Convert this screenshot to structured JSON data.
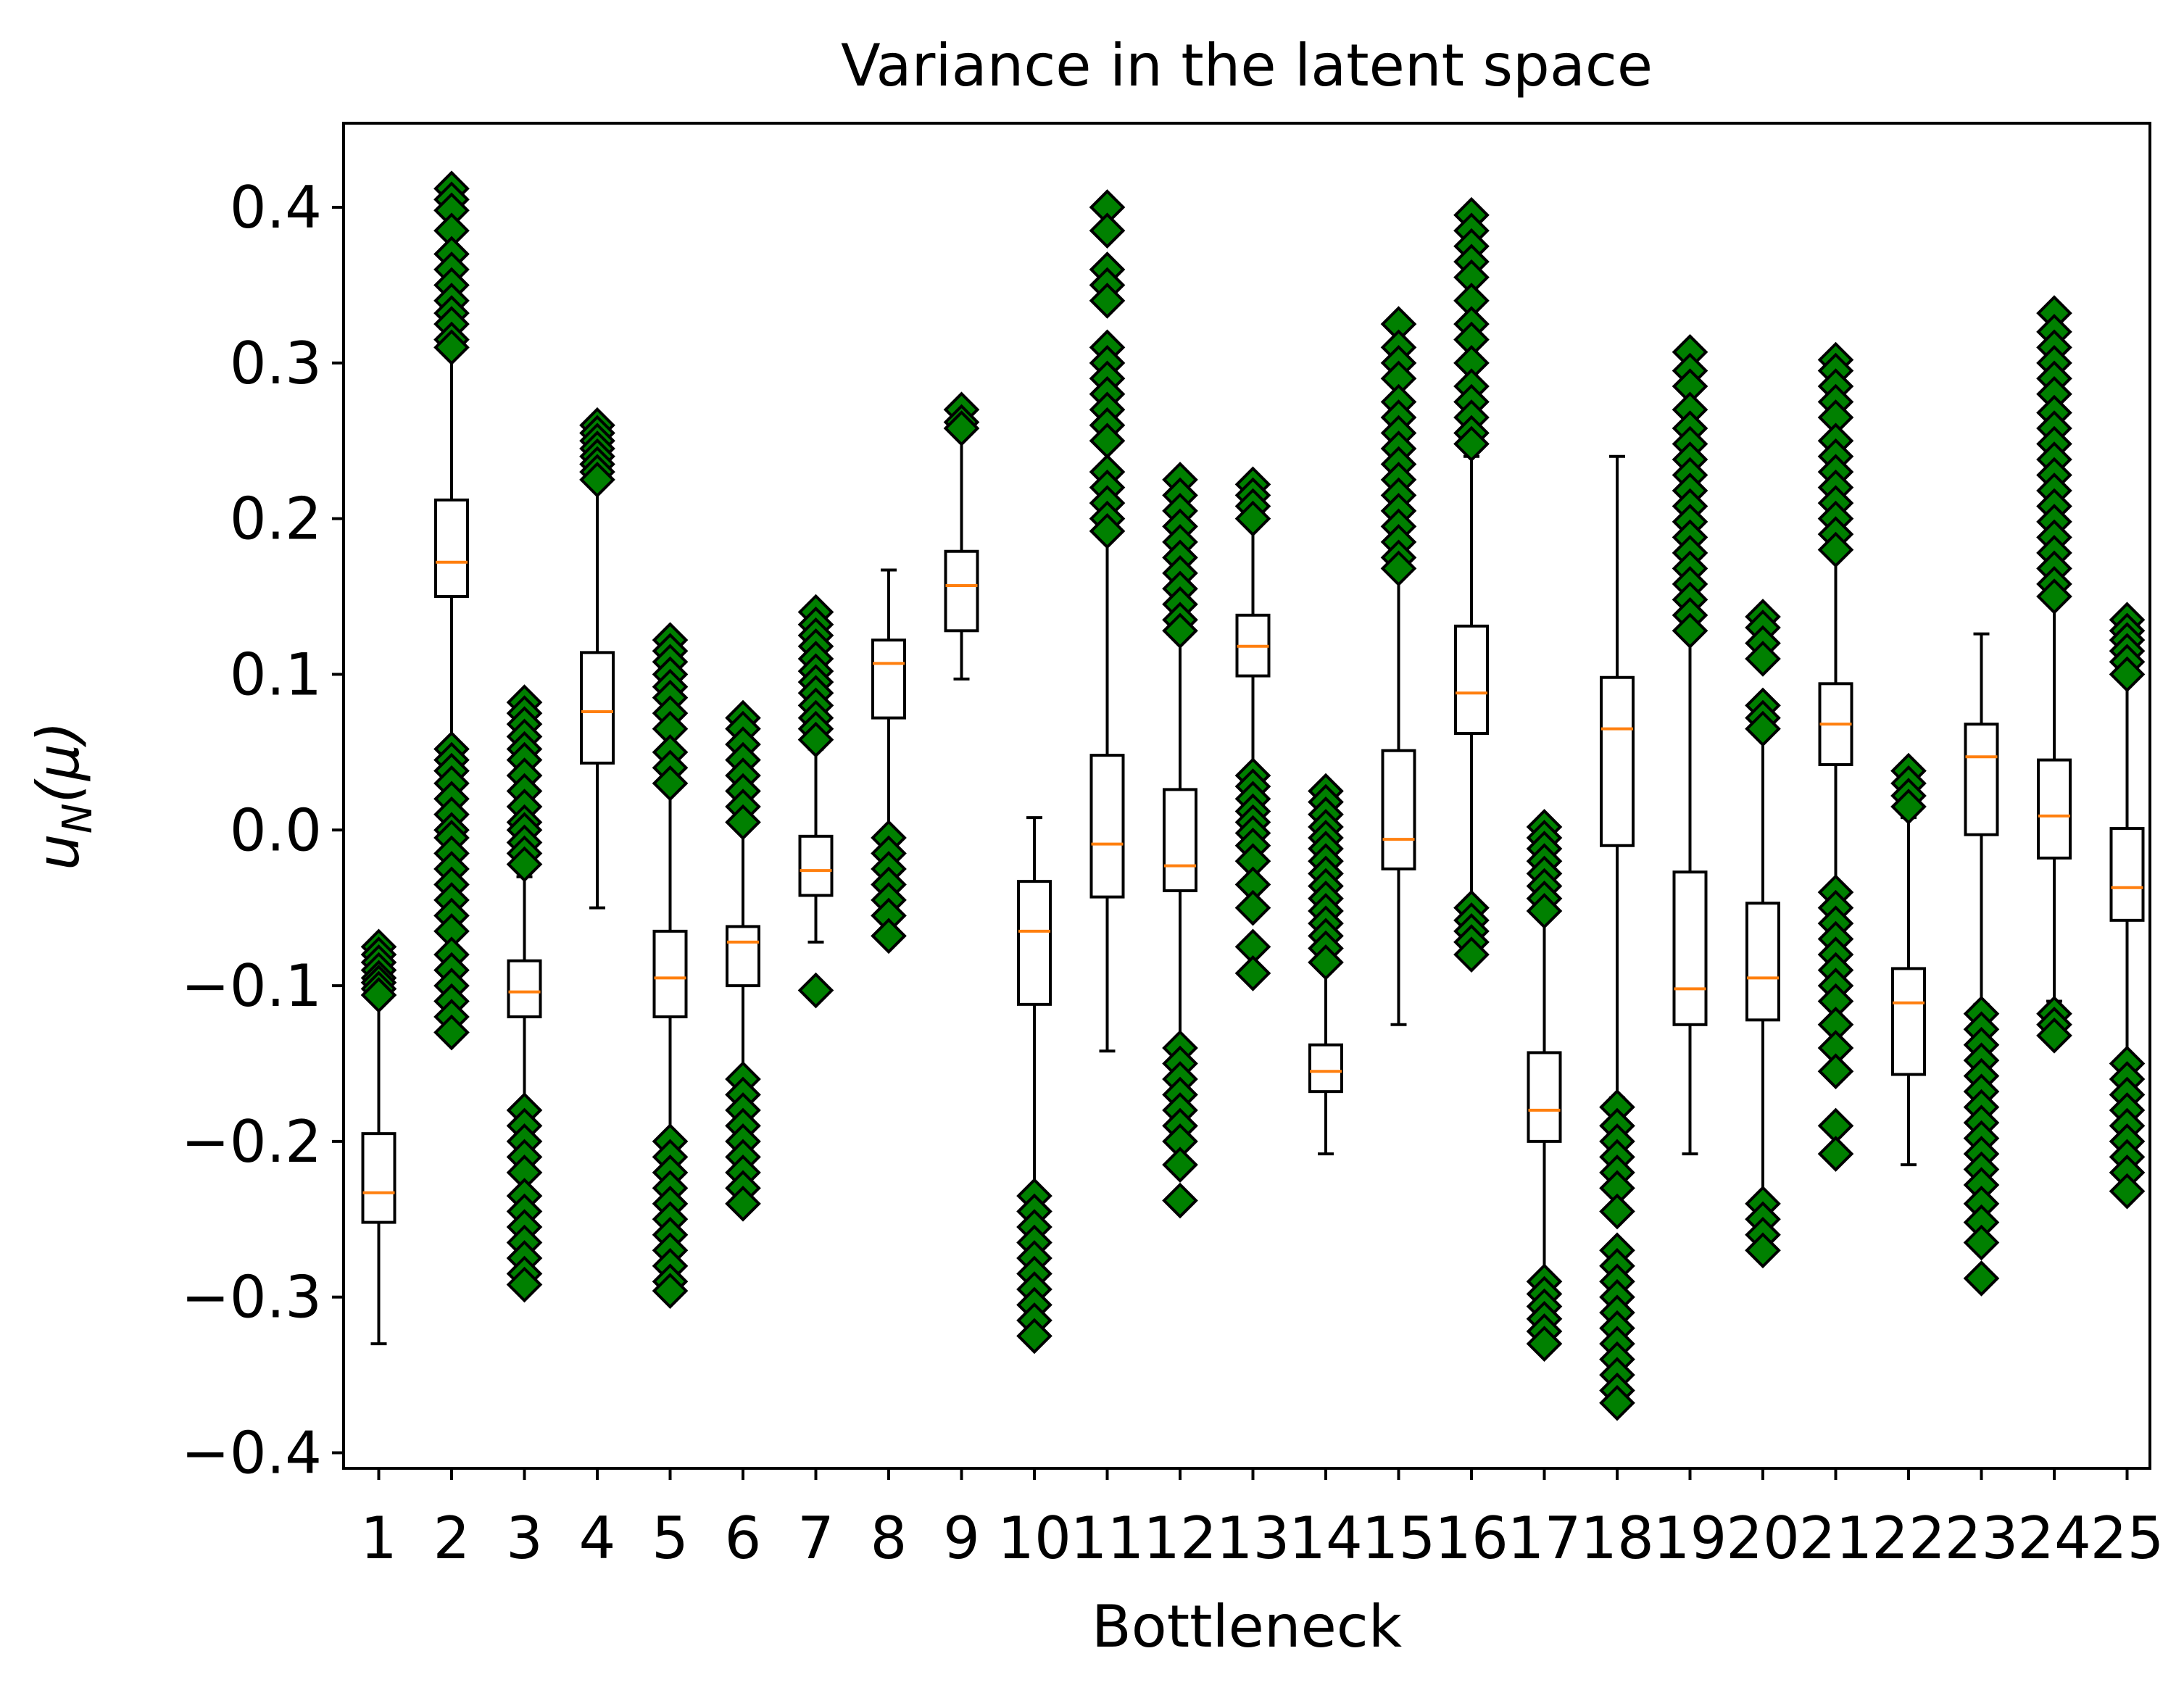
{
  "chart_data": {
    "type": "box",
    "title": "Variance in the latent space",
    "xlabel": "Bottleneck",
    "ylabel": {
      "main": "u",
      "sub": "N",
      "args": "(μ)"
    },
    "ylim": [
      -0.41,
      0.454
    ],
    "yticks": [
      -0.4,
      -0.3,
      -0.2,
      -0.1,
      0.0,
      0.1,
      0.2,
      0.3,
      0.4
    ],
    "ytick_labels": [
      "−0.4",
      "−0.3",
      "−0.2",
      "−0.1",
      "0.0",
      "0.1",
      "0.2",
      "0.3",
      "0.4"
    ],
    "categories": [
      "1",
      "2",
      "3",
      "4",
      "5",
      "6",
      "7",
      "8",
      "9",
      "10",
      "11",
      "12",
      "13",
      "14",
      "15",
      "16",
      "17",
      "18",
      "19",
      "20",
      "21",
      "22",
      "23",
      "24",
      "25"
    ],
    "colors": {
      "box_edge": "#000000",
      "median": "#ff7f0e",
      "flier_fill": "#008000",
      "flier_edge": "#000000"
    },
    "grid": false,
    "boxes": [
      {
        "q1": -0.252,
        "median": -0.233,
        "q3": -0.195,
        "whisker_low": -0.33,
        "whisker_high": -0.11,
        "fliers": [
          -0.075,
          -0.08,
          -0.085,
          -0.09,
          -0.095,
          -0.098,
          -0.102,
          -0.106
        ]
      },
      {
        "q1": 0.15,
        "median": 0.172,
        "q3": 0.212,
        "whisker_low": 0.055,
        "whisker_high": 0.308,
        "fliers": [
          0.412,
          0.405,
          0.398,
          0.385,
          0.37,
          0.36,
          0.35,
          0.34,
          0.332,
          0.325,
          0.315,
          0.31,
          0.052,
          0.045,
          0.038,
          0.03,
          0.02,
          0.01,
          0.0,
          -0.005,
          -0.015,
          -0.025,
          -0.035,
          -0.045,
          -0.055,
          -0.065,
          -0.08,
          -0.09,
          -0.1,
          -0.11,
          -0.12,
          -0.13
        ]
      },
      {
        "q1": -0.12,
        "median": -0.104,
        "q3": -0.084,
        "whisker_low": -0.178,
        "whisker_high": -0.03,
        "fliers": [
          0.082,
          0.075,
          0.068,
          0.06,
          0.052,
          0.045,
          0.035,
          0.025,
          0.015,
          0.005,
          0.0,
          -0.008,
          -0.015,
          -0.022,
          -0.18,
          -0.19,
          -0.2,
          -0.21,
          -0.22,
          -0.235,
          -0.245,
          -0.255,
          -0.265,
          -0.275,
          -0.285,
          -0.292
        ]
      },
      {
        "q1": 0.043,
        "median": 0.076,
        "q3": 0.114,
        "whisker_low": -0.05,
        "whisker_high": 0.222,
        "fliers": [
          0.26,
          0.255,
          0.25,
          0.245,
          0.24,
          0.235,
          0.23,
          0.225
        ]
      },
      {
        "q1": -0.12,
        "median": -0.095,
        "q3": -0.065,
        "whisker_low": -0.195,
        "whisker_high": 0.025,
        "fliers": [
          0.122,
          0.115,
          0.108,
          0.1,
          0.092,
          0.085,
          0.075,
          0.065,
          0.05,
          0.04,
          0.03,
          -0.2,
          -0.21,
          -0.22,
          -0.23,
          -0.24,
          -0.25,
          -0.26,
          -0.27,
          -0.28,
          -0.29,
          -0.296
        ]
      },
      {
        "q1": -0.1,
        "median": -0.072,
        "q3": -0.062,
        "whisker_low": -0.155,
        "whisker_high": 0.0,
        "fliers": [
          0.072,
          0.065,
          0.055,
          0.045,
          0.035,
          0.025,
          0.015,
          0.005,
          -0.16,
          -0.17,
          -0.18,
          -0.19,
          -0.2,
          -0.21,
          -0.22,
          -0.23,
          -0.24
        ]
      },
      {
        "q1": -0.042,
        "median": -0.026,
        "q3": -0.004,
        "whisker_low": -0.072,
        "whisker_high": 0.052,
        "fliers": [
          0.14,
          0.132,
          0.125,
          0.118,
          0.11,
          0.102,
          0.095,
          0.088,
          0.08,
          0.072,
          0.065,
          0.058,
          -0.103
        ]
      },
      {
        "q1": 0.072,
        "median": 0.107,
        "q3": 0.122,
        "whisker_low": 0.0,
        "whisker_high": 0.167,
        "fliers": [
          -0.005,
          -0.015,
          -0.025,
          -0.035,
          -0.045,
          -0.055,
          -0.068
        ]
      },
      {
        "q1": 0.128,
        "median": 0.157,
        "q3": 0.179,
        "whisker_low": 0.097,
        "whisker_high": 0.255,
        "fliers": [
          0.27,
          0.262,
          0.258
        ]
      },
      {
        "q1": -0.112,
        "median": -0.065,
        "q3": -0.033,
        "whisker_low": -0.23,
        "whisker_high": 0.008,
        "fliers": [
          -0.235,
          -0.245,
          -0.255,
          -0.265,
          -0.275,
          -0.285,
          -0.295,
          -0.305,
          -0.315,
          -0.325
        ]
      },
      {
        "q1": -0.043,
        "median": -0.009,
        "q3": 0.048,
        "whisker_low": -0.142,
        "whisker_high": 0.188,
        "fliers": [
          0.4,
          0.385,
          0.36,
          0.35,
          0.34,
          0.31,
          0.3,
          0.29,
          0.28,
          0.27,
          0.26,
          0.25,
          0.23,
          0.22,
          0.21,
          0.2,
          0.192
        ]
      },
      {
        "q1": -0.039,
        "median": -0.023,
        "q3": 0.026,
        "whisker_low": -0.135,
        "whisker_high": 0.125,
        "fliers": [
          0.225,
          0.215,
          0.205,
          0.195,
          0.185,
          0.175,
          0.165,
          0.155,
          0.145,
          0.135,
          0.128,
          -0.14,
          -0.15,
          -0.16,
          -0.17,
          -0.18,
          -0.19,
          -0.2,
          -0.215,
          -0.238
        ]
      },
      {
        "q1": 0.099,
        "median": 0.118,
        "q3": 0.138,
        "whisker_low": 0.04,
        "whisker_high": 0.195,
        "fliers": [
          0.222,
          0.215,
          0.208,
          0.2,
          0.035,
          0.028,
          0.02,
          0.012,
          0.005,
          -0.002,
          -0.01,
          -0.02,
          -0.035,
          -0.05,
          -0.075,
          -0.092
        ]
      },
      {
        "q1": -0.168,
        "median": -0.155,
        "q3": -0.138,
        "whisker_low": -0.208,
        "whisker_high": -0.09,
        "fliers": [
          0.025,
          0.018,
          0.01,
          0.002,
          -0.005,
          -0.012,
          -0.02,
          -0.028,
          -0.036,
          -0.044,
          -0.052,
          -0.06,
          -0.068,
          -0.076,
          -0.085
        ]
      },
      {
        "q1": -0.025,
        "median": -0.006,
        "q3": 0.051,
        "whisker_low": -0.125,
        "whisker_high": 0.163,
        "fliers": [
          0.325,
          0.31,
          0.3,
          0.29,
          0.275,
          0.265,
          0.255,
          0.245,
          0.235,
          0.225,
          0.215,
          0.205,
          0.195,
          0.185,
          0.175,
          0.168
        ]
      },
      {
        "q1": 0.062,
        "median": 0.088,
        "q3": 0.131,
        "whisker_low": -0.045,
        "whisker_high": 0.24,
        "fliers": [
          0.395,
          0.385,
          0.375,
          0.365,
          0.355,
          0.34,
          0.325,
          0.315,
          0.3,
          0.285,
          0.275,
          0.265,
          0.255,
          0.248,
          -0.05,
          -0.058,
          -0.065,
          -0.072,
          -0.08
        ]
      },
      {
        "q1": -0.2,
        "median": -0.18,
        "q3": -0.143,
        "whisker_low": -0.285,
        "whisker_high": -0.055,
        "fliers": [
          0.002,
          -0.005,
          -0.012,
          -0.02,
          -0.028,
          -0.036,
          -0.044,
          -0.052,
          -0.29,
          -0.298,
          -0.306,
          -0.314,
          -0.322,
          -0.33
        ]
      },
      {
        "q1": -0.01,
        "median": 0.065,
        "q3": 0.098,
        "whisker_low": -0.172,
        "whisker_high": 0.24,
        "fliers": [
          -0.178,
          -0.19,
          -0.2,
          -0.21,
          -0.22,
          -0.23,
          -0.245,
          -0.27,
          -0.28,
          -0.29,
          -0.3,
          -0.31,
          -0.32,
          -0.33,
          -0.34,
          -0.35,
          -0.36,
          -0.368
        ]
      },
      {
        "q1": -0.125,
        "median": -0.102,
        "q3": -0.027,
        "whisker_low": -0.208,
        "whisker_high": 0.125,
        "fliers": [
          0.307,
          0.295,
          0.285,
          0.27,
          0.258,
          0.248,
          0.238,
          0.228,
          0.218,
          0.208,
          0.198,
          0.188,
          0.178,
          0.168,
          0.158,
          0.148,
          0.138,
          0.128
        ]
      },
      {
        "q1": -0.122,
        "median": -0.095,
        "q3": -0.047,
        "whisker_low": -0.235,
        "whisker_high": 0.06,
        "fliers": [
          0.137,
          0.13,
          0.12,
          0.11,
          0.08,
          0.072,
          0.065,
          -0.24,
          -0.25,
          -0.26,
          -0.27
        ]
      },
      {
        "q1": 0.042,
        "median": 0.068,
        "q3": 0.094,
        "whisker_low": -0.035,
        "whisker_high": 0.175,
        "fliers": [
          0.302,
          0.295,
          0.285,
          0.275,
          0.265,
          0.25,
          0.24,
          0.23,
          0.22,
          0.21,
          0.2,
          0.19,
          0.18,
          -0.04,
          -0.05,
          -0.06,
          -0.07,
          -0.08,
          -0.09,
          -0.1,
          -0.11,
          -0.125,
          -0.14,
          -0.155,
          -0.19,
          -0.208
        ]
      },
      {
        "q1": -0.157,
        "median": -0.111,
        "q3": -0.089,
        "whisker_low": -0.215,
        "whisker_high": 0.008,
        "fliers": [
          0.038,
          0.03,
          0.022,
          0.015
        ]
      },
      {
        "q1": -0.003,
        "median": 0.047,
        "q3": 0.068,
        "whisker_low": -0.112,
        "whisker_high": 0.126,
        "fliers": [
          -0.118,
          -0.128,
          -0.138,
          -0.148,
          -0.158,
          -0.168,
          -0.178,
          -0.188,
          -0.198,
          -0.208,
          -0.218,
          -0.228,
          -0.24,
          -0.252,
          -0.265,
          -0.288
        ]
      },
      {
        "q1": -0.018,
        "median": 0.009,
        "q3": 0.045,
        "whisker_low": -0.11,
        "whisker_high": 0.145,
        "fliers": [
          0.332,
          0.32,
          0.31,
          0.3,
          0.29,
          0.28,
          0.268,
          0.258,
          0.248,
          0.238,
          0.228,
          0.218,
          0.208,
          0.198,
          0.188,
          0.178,
          0.168,
          0.158,
          0.15,
          -0.118,
          -0.125,
          -0.132
        ]
      },
      {
        "q1": -0.058,
        "median": -0.037,
        "q3": 0.001,
        "whisker_low": -0.145,
        "whisker_high": 0.095,
        "fliers": [
          0.135,
          0.128,
          0.122,
          0.115,
          0.108,
          0.1,
          -0.15,
          -0.16,
          -0.17,
          -0.18,
          -0.19,
          -0.2,
          -0.21,
          -0.22,
          -0.232
        ]
      }
    ]
  }
}
